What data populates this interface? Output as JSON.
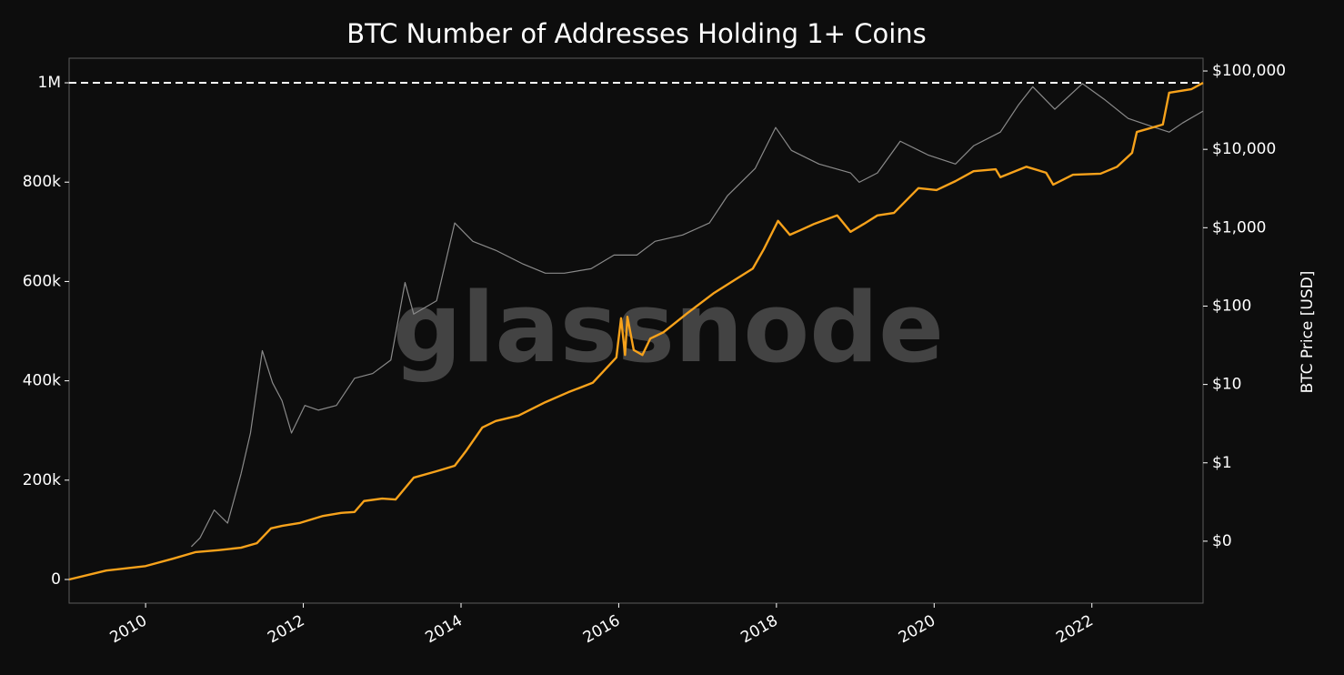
{
  "chart_data": {
    "type": "line",
    "title": "BTC Number of Addresses Holding 1+ Coins",
    "y2label": "BTC Price [USD]",
    "watermark": "glassnode",
    "xlim": [
      2009.03,
      2023.41
    ],
    "xticks": [
      2010,
      2012,
      2014,
      2016,
      2018,
      2020,
      2022
    ],
    "ylim": [
      -47600,
      1049500
    ],
    "yticks": [
      0,
      {
        "value": 200000,
        "label": "200k"
      },
      {
        "value": 400000,
        "label": "400k"
      },
      {
        "value": 600000,
        "label": "600k"
      },
      {
        "value": 800000,
        "label": "800k"
      },
      {
        "value": 1000000,
        "label": "1M"
      }
    ],
    "y2lim": [
      0.0162,
      145500
    ],
    "y2scale": "log",
    "y2ticks": [
      {
        "value": 0.1,
        "label": "$0"
      },
      {
        "value": 1,
        "label": "$1"
      },
      {
        "value": 10,
        "label": "$10"
      },
      {
        "value": 100,
        "label": "$100"
      },
      {
        "value": 1000,
        "label": "$1,000"
      },
      {
        "value": 10000,
        "label": "$10,000"
      },
      {
        "value": 100000,
        "label": "$100,000"
      }
    ],
    "hline": 1000000,
    "series": [
      {
        "color": "#8a8a8a",
        "axis": "y2",
        "x": [
          2010.58,
          2010.69,
          2010.87,
          2011.04,
          2011.21,
          2011.33,
          2011.48,
          2011.61,
          2011.73,
          2011.85,
          2012.02,
          2012.19,
          2012.42,
          2012.65,
          2012.88,
          2013.11,
          2013.29,
          2013.4,
          2013.69,
          2013.92,
          2014.15,
          2014.44,
          2014.79,
          2015.07,
          2015.31,
          2015.65,
          2015.94,
          2016.23,
          2016.46,
          2016.81,
          2017.15,
          2017.38,
          2017.73,
          2017.99,
          2018.19,
          2018.54,
          2018.94,
          2019.05,
          2019.28,
          2019.57,
          2019.92,
          2020.27,
          2020.5,
          2020.84,
          2021.07,
          2021.25,
          2021.53,
          2021.88,
          2022.17,
          2022.46,
          2022.8,
          2022.98,
          2023.15,
          2023.41
        ],
        "values": [
          0.085,
          0.11,
          0.25,
          0.17,
          0.72,
          2.4,
          27,
          10.5,
          6.2,
          2.4,
          5.4,
          4.7,
          5.4,
          12,
          13.8,
          20.5,
          200,
          79,
          117,
          1150,
          670,
          515,
          343,
          263,
          263,
          300,
          448,
          448,
          670,
          807,
          1150,
          2570,
          5700,
          19000,
          9700,
          6500,
          5000,
          3800,
          5000,
          12700,
          8500,
          6500,
          11100,
          16600,
          37000,
          63000,
          32500,
          69000,
          42500,
          24800,
          19000,
          16600,
          21700,
          30800
        ]
      },
      {
        "color": "#f7a21b",
        "x": [
          2009.03,
          2009.5,
          2010.0,
          2010.35,
          2010.63,
          2010.92,
          2011.21,
          2011.41,
          2011.59,
          2011.73,
          2011.96,
          2012.25,
          2012.48,
          2012.65,
          2012.77,
          2013.0,
          2013.17,
          2013.4,
          2013.69,
          2013.92,
          2014.06,
          2014.27,
          2014.44,
          2014.73,
          2015.07,
          2015.36,
          2015.67,
          2015.97,
          2016.03,
          2016.08,
          2016.11,
          2016.19,
          2016.3,
          2016.4,
          2016.57,
          2016.86,
          2017.21,
          2017.47,
          2017.7,
          2017.84,
          2018.02,
          2018.17,
          2018.3,
          2018.48,
          2018.77,
          2018.94,
          2019.11,
          2019.28,
          2019.49,
          2019.8,
          2020.03,
          2020.27,
          2020.5,
          2020.78,
          2020.84,
          2021.17,
          2021.42,
          2021.51,
          2021.76,
          2022.11,
          2022.32,
          2022.51,
          2022.57,
          2022.9,
          2022.98,
          2023.26,
          2023.41
        ],
        "values": [
          0,
          18000,
          27000,
          42000,
          55000,
          59000,
          64000,
          73000,
          103000,
          108000,
          114000,
          128000,
          134000,
          136000,
          158000,
          163000,
          161000,
          205000,
          218000,
          229000,
          258000,
          306000,
          319000,
          330000,
          357000,
          377000,
          396000,
          447000,
          526000,
          452000,
          529000,
          462000,
          452000,
          485000,
          498000,
          535000,
          577000,
          603000,
          626000,
          665000,
          722000,
          694000,
          703000,
          716000,
          733000,
          700000,
          716000,
          733000,
          738000,
          788000,
          784000,
          802000,
          822000,
          826000,
          810000,
          831000,
          819000,
          795000,
          815000,
          817000,
          831000,
          859000,
          901000,
          916000,
          980000,
          987000,
          1000000
        ]
      }
    ]
  }
}
